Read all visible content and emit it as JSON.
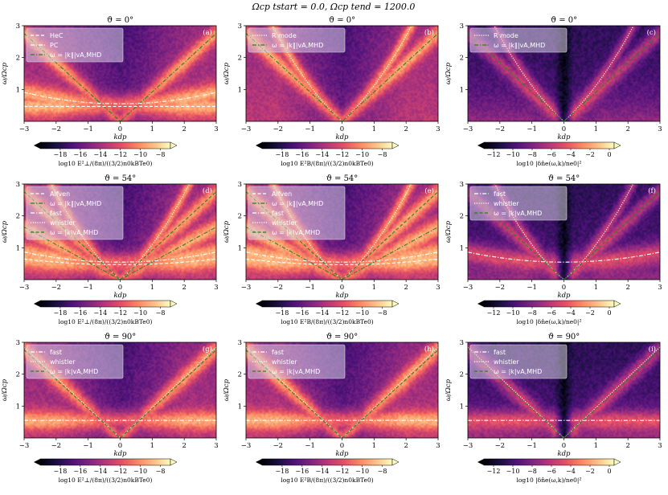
{
  "suptitle": "Ωcp tstart = 0.0,  Ωcp tend = 1200.0",
  "common": {
    "xlabel": "kdp",
    "ylabel": "ω/Ωcp",
    "xlim": [
      -3,
      3
    ],
    "ylim": [
      0,
      3
    ],
    "xticks": [
      "−3",
      "−2",
      "−1",
      "0",
      "1",
      "2",
      "3"
    ],
    "yticks": [
      "1",
      "2",
      "3"
    ]
  },
  "colorbars": {
    "E": {
      "label": "log10 E²⊥/(8π)/((3/2)n0kBTe0)",
      "ticks": [
        "−18",
        "−16",
        "−14",
        "−12",
        "−10",
        "−8"
      ],
      "range": [
        -20,
        -7
      ]
    },
    "B": {
      "label": "log10 E²B/(8π)/((3/2)n0kBTe0)",
      "ticks": [
        "−18",
        "−16",
        "−14",
        "−12",
        "−10",
        "−8"
      ],
      "range": [
        -20,
        -7
      ]
    },
    "N": {
      "label": "log10 |δn̂e(ω,k)/ne0|²",
      "ticks": [
        "−12",
        "−10",
        "−8",
        "−6",
        "−4",
        "−2",
        "0"
      ],
      "range": [
        -13,
        0.5
      ]
    }
  },
  "chart_data": [
    {
      "type": "heatmap",
      "panel": "(a)",
      "title": "ϑ = 0°",
      "cbar": "E",
      "brightness": 0.8,
      "curves": [
        "vamhd_k1",
        "hec",
        "pc"
      ],
      "legend": [
        {
          "style": "dash",
          "label": "HeC"
        },
        {
          "style": "dashdot",
          "label": "PC"
        },
        {
          "style": "dashdot-green",
          "label": "ω = |k∥|vA,MHD"
        }
      ]
    },
    {
      "type": "heatmap",
      "panel": "(b)",
      "title": "ϑ = 0°",
      "cbar": "B",
      "brightness": 0.82,
      "curves": [
        "rmode",
        "vamhd_k1"
      ],
      "legend": [
        {
          "style": "dot",
          "label": "R mode"
        },
        {
          "style": "dashdot-green",
          "label": "ω = |k∥|vA,MHD"
        }
      ]
    },
    {
      "type": "heatmap",
      "panel": "(c)",
      "title": "ϑ = 0°",
      "cbar": "N",
      "brightness": 0.6,
      "curves": [
        "rmode",
        "vamhd_k1"
      ],
      "legend": [
        {
          "style": "dot",
          "label": "R mode"
        },
        {
          "style": "dashdot-green",
          "label": "ω = |k∥|vA,MHD"
        }
      ]
    },
    {
      "type": "heatmap",
      "panel": "(d)",
      "title": "ϑ = 54°",
      "cbar": "E",
      "brightness": 0.8,
      "curves": [
        "alfven",
        "vamhd_k1_54",
        "fast",
        "whistler",
        "vamhd_k"
      ],
      "legend": [
        {
          "style": "dash",
          "label": "Alfven"
        },
        {
          "style": "dashdot-green",
          "label": "ω = |k∥|vA,MHD"
        },
        {
          "style": "dashdot",
          "label": "fast"
        },
        {
          "style": "dot",
          "label": "whistler"
        },
        {
          "style": "dash-green",
          "label": "ω = |k|vA,MHD"
        }
      ]
    },
    {
      "type": "heatmap",
      "panel": "(e)",
      "title": "ϑ = 54°",
      "cbar": "B",
      "brightness": 0.82,
      "curves": [
        "alfven",
        "vamhd_k1_54",
        "fast",
        "whistler",
        "vamhd_k"
      ],
      "legend": [
        {
          "style": "dash",
          "label": "Alfven"
        },
        {
          "style": "dashdot-green",
          "label": "ω = |k∥|vA,MHD"
        },
        {
          "style": "dashdot",
          "label": "fast"
        },
        {
          "style": "dot",
          "label": "whistler"
        },
        {
          "style": "dash-green",
          "label": "ω = |k|vA,MHD"
        }
      ]
    },
    {
      "type": "heatmap",
      "panel": "(f)",
      "title": "ϑ = 54°",
      "cbar": "N",
      "brightness": 0.6,
      "curves": [
        "fast",
        "whistler",
        "vamhd_k"
      ],
      "legend": [
        {
          "style": "dashdot",
          "label": "fast"
        },
        {
          "style": "dot",
          "label": "whistler"
        },
        {
          "style": "dash-green",
          "label": "ω = |k|vA,MHD"
        }
      ]
    },
    {
      "type": "heatmap",
      "panel": "(g)",
      "title": "ϑ = 90°",
      "cbar": "E",
      "brightness": 0.78,
      "curves": [
        "fast90",
        "whistler90",
        "vamhd_k"
      ],
      "legend": [
        {
          "style": "dashdot",
          "label": "fast"
        },
        {
          "style": "dot",
          "label": "whistler"
        },
        {
          "style": "dash-green",
          "label": "ω = |k|vA,MHD"
        }
      ]
    },
    {
      "type": "heatmap",
      "panel": "(h)",
      "title": "ϑ = 90°",
      "cbar": "B",
      "brightness": 0.8,
      "curves": [
        "fast90",
        "whistler90",
        "vamhd_k"
      ],
      "legend": [
        {
          "style": "dashdot",
          "label": "fast"
        },
        {
          "style": "dot",
          "label": "whistler"
        },
        {
          "style": "dash-green",
          "label": "ω = |k|vA,MHD"
        }
      ]
    },
    {
      "type": "heatmap",
      "panel": "(i)",
      "title": "ϑ = 90°",
      "cbar": "N",
      "brightness": 0.6,
      "curves": [
        "fast90",
        "whistler90",
        "vamhd_k"
      ],
      "legend": [
        {
          "style": "dashdot",
          "label": "fast"
        },
        {
          "style": "dot",
          "label": "whistler"
        },
        {
          "style": "dash-green",
          "label": "ω = |k|vA,MHD"
        }
      ]
    }
  ],
  "colors": {
    "green": "#2e7d1e",
    "curve": "#ffffff",
    "bg": "#ffffff"
  }
}
